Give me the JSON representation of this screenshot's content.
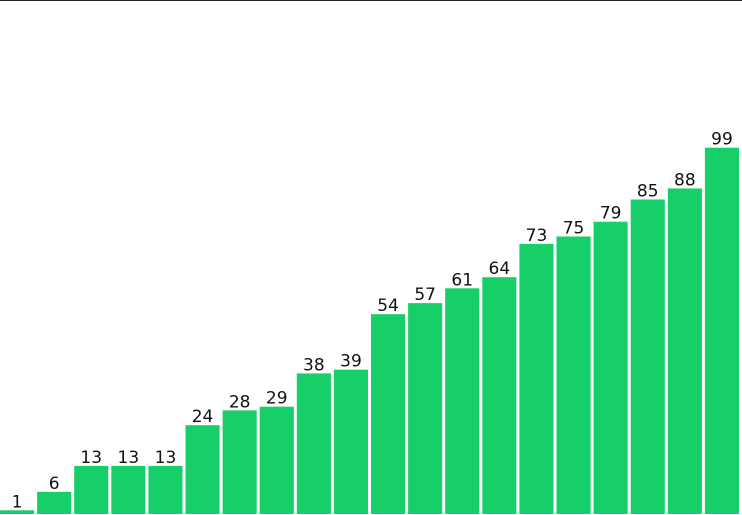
{
  "chart_data": {
    "type": "bar",
    "values": [
      1,
      6,
      13,
      13,
      13,
      24,
      28,
      29,
      38,
      39,
      54,
      57,
      61,
      64,
      73,
      75,
      79,
      85,
      88,
      99
    ],
    "data_labels": [
      "1",
      "6",
      "13",
      "13",
      "13",
      "24",
      "28",
      "29",
      "38",
      "39",
      "54",
      "57",
      "61",
      "64",
      "73",
      "75",
      "79",
      "85",
      "88",
      "99"
    ],
    "ylim": [
      0,
      100
    ],
    "grid": false,
    "legend": "none",
    "colors": {
      "bar": "#17cf68",
      "label": "#111111",
      "top_rule": "#222222"
    }
  }
}
